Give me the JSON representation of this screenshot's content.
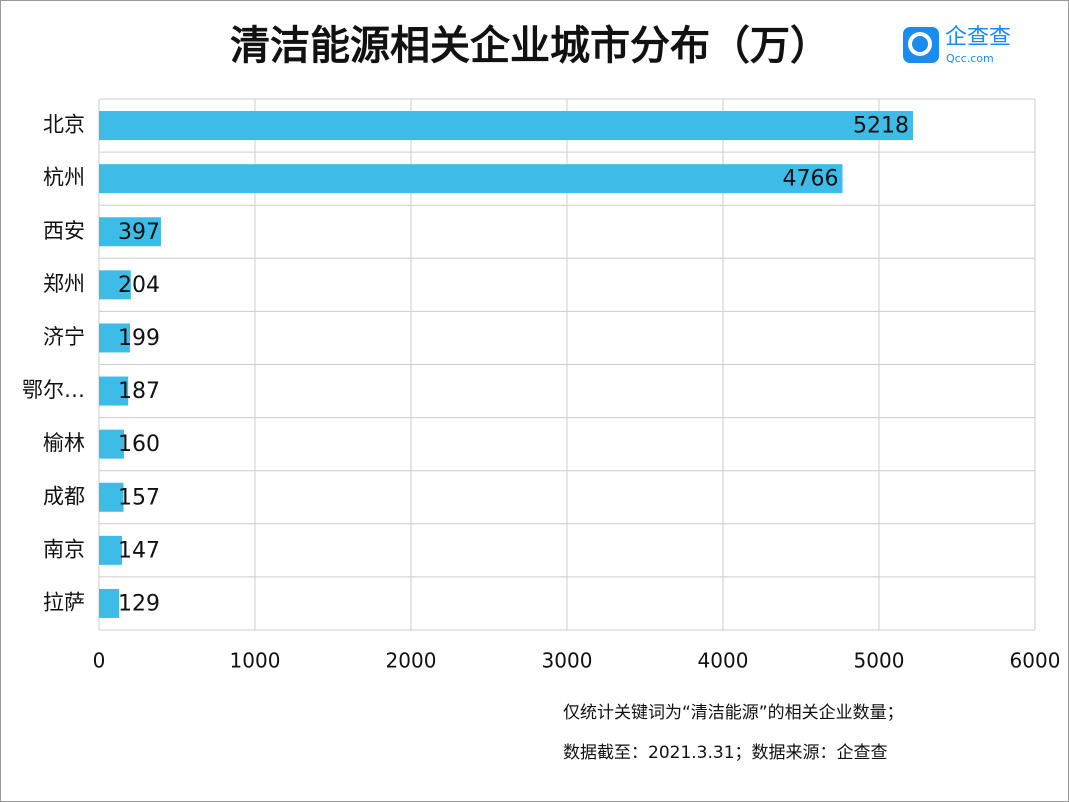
{
  "chart_data": {
    "type": "bar",
    "orientation": "horizontal",
    "title": "清洁能源相关企业城市分布（万）",
    "logo": {
      "name": "企查查",
      "url": "Qcc.com"
    },
    "categories": [
      "北京",
      "杭州",
      "西安",
      "郑州",
      "济宁",
      "鄂尔…",
      "榆林",
      "成都",
      "南京",
      "拉萨"
    ],
    "values": [
      5218,
      4766,
      397,
      204,
      199,
      187,
      160,
      157,
      147,
      129
    ],
    "color": "#3dbce8",
    "xlim": [
      0,
      6000
    ],
    "xticks": [
      0,
      1000,
      2000,
      3000,
      4000,
      5000,
      6000
    ],
    "grid": true,
    "notes": [
      "仅统计关键词为“清洁能源”的相关企业数量；",
      "数据截至：2021.3.31；数据来源：企查查"
    ]
  }
}
